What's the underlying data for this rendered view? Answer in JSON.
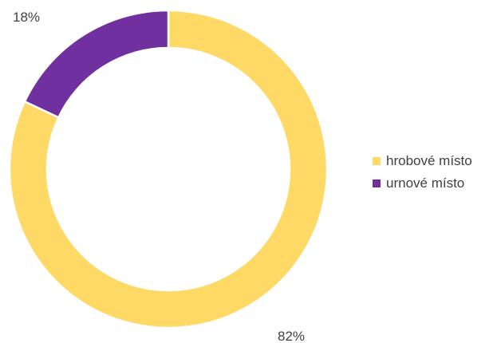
{
  "chart_data": {
    "type": "pie",
    "variant": "donut",
    "categories": [
      "hrobové místo",
      "urnové místo"
    ],
    "values": [
      82,
      18
    ],
    "data_labels": [
      "82%",
      "18%"
    ],
    "colors": [
      "#FFD966",
      "#7030A0"
    ],
    "title": "",
    "legend_position": "right"
  }
}
